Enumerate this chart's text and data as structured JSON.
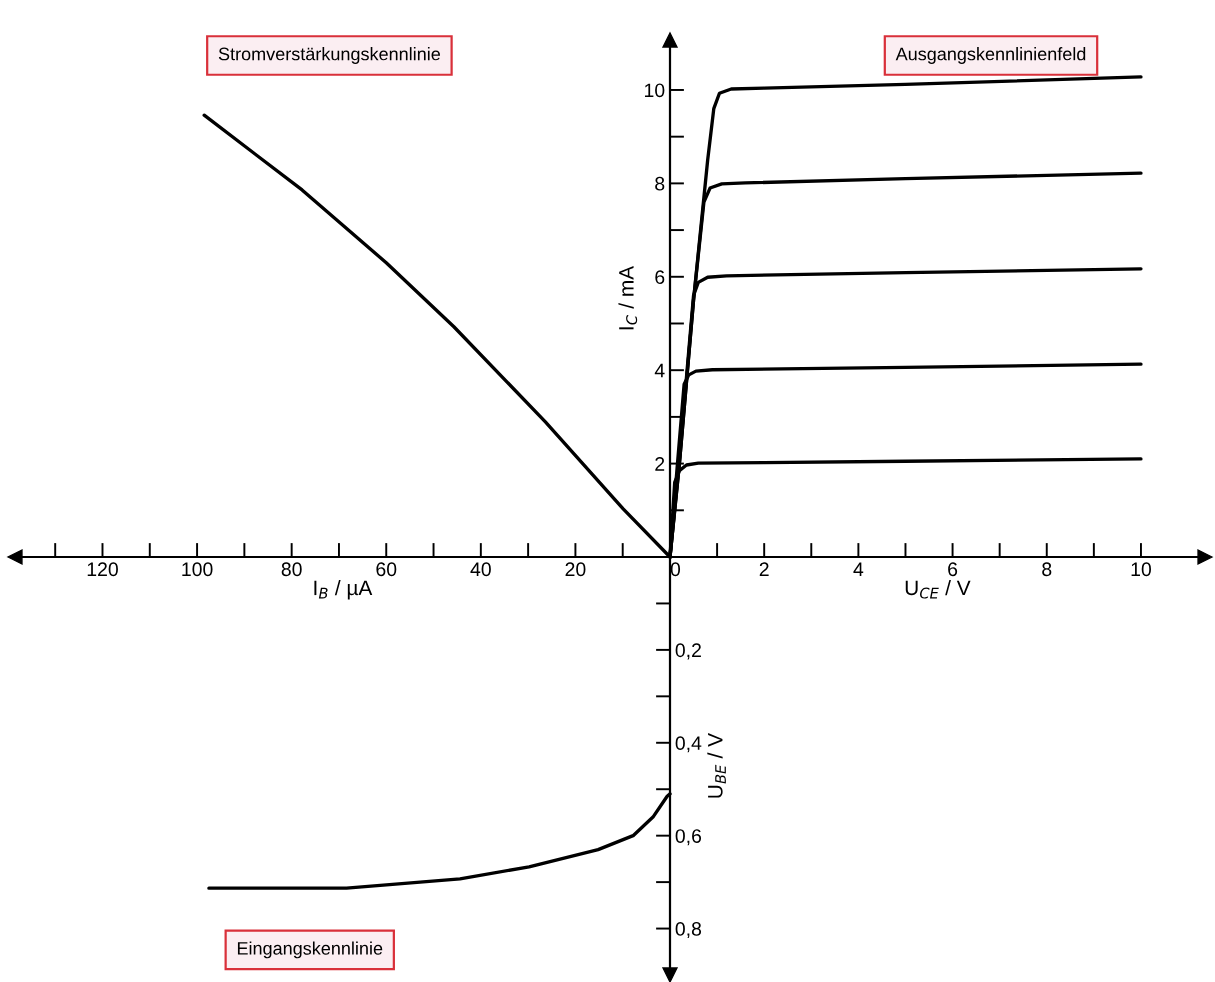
{
  "chart_data": [
    {
      "type": "line",
      "title": "Stromverstärkungskennlinie",
      "xlabel": "I$_{B}$ / µA",
      "xlim": [
        138.5,
        0
      ],
      "ylim": [
        0,
        11.07
      ],
      "tick_labels": "x",
      "xticks": [
        {
          "value": 10,
          "label": null
        },
        20,
        {
          "value": 30,
          "label": null
        },
        40,
        {
          "value": 50,
          "label": null
        },
        60,
        {
          "value": 70,
          "label": null
        },
        80,
        {
          "value": 90,
          "label": null
        },
        100,
        {
          "value": 110,
          "label": null
        },
        120,
        {
          "value": 130,
          "label": null
        }
      ],
      "series": [
        {
          "color": "#000000",
          "x": [
            0,
            9.9,
            26.4,
            45.7,
            60,
            77.8,
            98.5
          ],
          "values": [
            0,
            1.03,
            2.9,
            4.93,
            6.3,
            7.86,
            9.46
          ]
        }
      ]
    },
    {
      "type": "line",
      "title": "Ausgangskennlinienfeld",
      "xlabel": "U$_{CE}$ / V",
      "ylabel": "I$_{C}$ / mA",
      "xlim": [
        0,
        11.36
      ],
      "ylim": [
        0,
        11.07
      ],
      "xticks": [
        0,
        {
          "value": 1,
          "label": null
        },
        2,
        {
          "value": 3,
          "label": null
        },
        4,
        {
          "value": 5,
          "label": null
        },
        6,
        {
          "value": 7,
          "label": null
        },
        8,
        {
          "value": 9,
          "label": null
        },
        10
      ],
      "yticks": [
        {
          "value": 1,
          "label": null
        },
        2,
        {
          "value": 3,
          "label": null
        },
        4,
        {
          "value": 5,
          "label": null
        },
        6,
        {
          "value": 7,
          "label": null
        },
        8,
        {
          "value": 9,
          "label": null
        },
        10
      ],
      "series": [
        {
          "color": "#000000",
          "x": [
            0,
            0.1,
            0.2,
            0.35,
            0.6,
            2,
            5,
            10
          ],
          "values": [
            0,
            1.6,
            1.85,
            1.97,
            2.01,
            2.02,
            2.05,
            2.1
          ]
        },
        {
          "color": "#000000",
          "x": [
            0,
            0.15,
            0.3,
            0.4,
            0.55,
            0.9,
            5,
            10
          ],
          "values": [
            0,
            1.9,
            3.7,
            3.9,
            3.98,
            4.01,
            4.06,
            4.13
          ]
        },
        {
          "color": "#000000",
          "x": [
            0,
            0.2,
            0.5,
            0.6,
            0.8,
            1.2,
            5,
            10
          ],
          "values": [
            0,
            2.1,
            5.6,
            5.88,
            5.99,
            6.02,
            6.09,
            6.17
          ]
        },
        {
          "color": "#000000",
          "x": [
            0,
            0.2,
            0.5,
            0.72,
            0.85,
            1.1,
            1.6,
            5,
            10
          ],
          "values": [
            0,
            2.0,
            5.5,
            7.6,
            7.9,
            7.99,
            8.01,
            8.1,
            8.22
          ]
        },
        {
          "color": "#000000",
          "x": [
            0,
            0.2,
            0.5,
            0.8,
            0.93,
            1.05,
            1.3,
            2,
            5,
            10
          ],
          "values": [
            0,
            2.0,
            5.5,
            8.5,
            9.6,
            9.93,
            10.02,
            10.04,
            10.12,
            10.28
          ]
        }
      ]
    },
    {
      "type": "line",
      "title": "Eingangskennlinie",
      "ylabel": "U$_{BE}$ / V",
      "xlim": [
        138.5,
        0
      ],
      "ylim": [
        0.9,
        0
      ],
      "tick_labels": "y",
      "yticks": [
        {
          "value": 0.1,
          "label": null
        },
        {
          "value": 0.2,
          "label": "0,2"
        },
        {
          "value": 0.3,
          "label": null
        },
        {
          "value": 0.4,
          "label": "0,4"
        },
        {
          "value": 0.5,
          "label": null
        },
        {
          "value": 0.6,
          "label": "0,6"
        },
        {
          "value": 0.7,
          "label": null
        },
        {
          "value": 0.8,
          "label": "0,8"
        }
      ],
      "series": [
        {
          "color": "#000000",
          "x": [
            0,
            0.6,
            3.6,
            7.8,
            15.2,
            29.8,
            44.4,
            68.4,
            97.5
          ],
          "values": [
            0.51,
            0.515,
            0.56,
            0.6,
            0.63,
            0.667,
            0.693,
            0.713,
            0.713
          ]
        }
      ]
    }
  ]
}
